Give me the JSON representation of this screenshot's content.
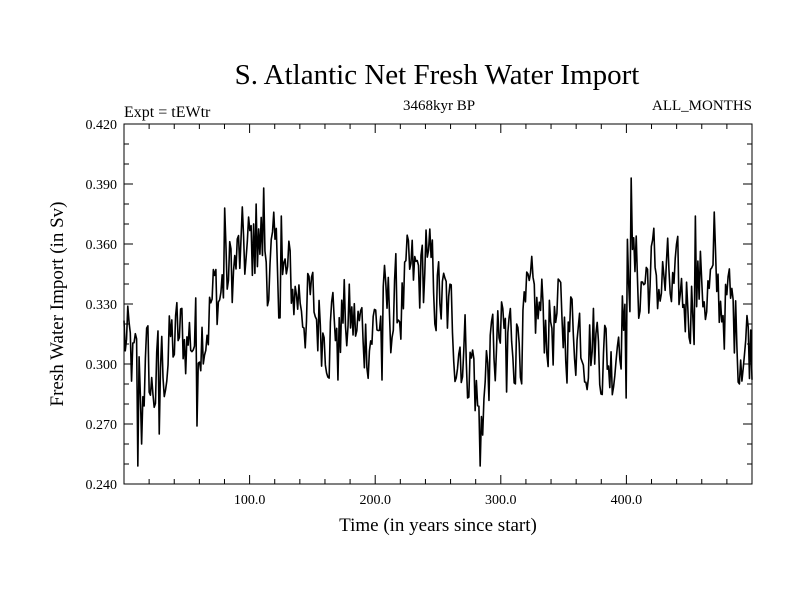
{
  "chart_data": {
    "type": "line",
    "title": "S. Atlantic Net Fresh Water Import",
    "subtitle_left": "Expt = tEWtr",
    "subtitle_center": "3468kyr BP",
    "subtitle_right": "ALL_MONTHS",
    "xlabel": "Time (in years since start)",
    "ylabel": "Fresh Water Import (in Sv)",
    "xlim": [
      0,
      500
    ],
    "ylim": [
      0.24,
      0.42
    ],
    "x_ticks": [
      100,
      200,
      300,
      400
    ],
    "x_tick_labels": [
      "100.0",
      "200.0",
      "300.0",
      "400.0"
    ],
    "y_ticks": [
      0.24,
      0.27,
      0.3,
      0.33,
      0.36,
      0.39,
      0.42
    ],
    "y_tick_labels": [
      "0.240",
      "0.270",
      "0.300",
      "0.330",
      "0.360",
      "0.390",
      "0.420"
    ],
    "grid": false,
    "series": [
      {
        "name": "Fresh Water Import",
        "anchors_x": [
          0,
          5,
          12,
          18,
          22,
          30,
          40,
          55,
          60,
          70,
          80,
          90,
          100,
          110,
          115,
          120,
          130,
          140,
          150,
          160,
          170,
          180,
          190,
          200,
          210,
          220,
          230,
          240,
          250,
          260,
          270,
          278,
          283,
          286,
          290,
          300,
          310,
          320,
          330,
          340,
          350,
          360,
          370,
          380,
          388,
          392,
          400,
          404,
          410,
          420,
          430,
          440,
          450,
          460,
          470,
          480,
          490,
          500
        ],
        "anchors_y": [
          0.315,
          0.3,
          0.29,
          0.3,
          0.285,
          0.3,
          0.31,
          0.315,
          0.32,
          0.33,
          0.34,
          0.35,
          0.355,
          0.36,
          0.35,
          0.345,
          0.34,
          0.335,
          0.325,
          0.32,
          0.325,
          0.32,
          0.315,
          0.32,
          0.325,
          0.33,
          0.34,
          0.345,
          0.335,
          0.32,
          0.31,
          0.3,
          0.27,
          0.285,
          0.3,
          0.31,
          0.315,
          0.32,
          0.325,
          0.32,
          0.318,
          0.32,
          0.315,
          0.31,
          0.3,
          0.315,
          0.34,
          0.35,
          0.34,
          0.345,
          0.34,
          0.33,
          0.335,
          0.34,
          0.335,
          0.33,
          0.315,
          0.31
        ],
        "spikes": [
          [
            11,
            0.249
          ],
          [
            14,
            0.26
          ],
          [
            28,
            0.265
          ],
          [
            58,
            0.269
          ],
          [
            80,
            0.378
          ],
          [
            105,
            0.38
          ],
          [
            111,
            0.388
          ],
          [
            125,
            0.374
          ],
          [
            170,
            0.292
          ],
          [
            205,
            0.292
          ],
          [
            240,
            0.367
          ],
          [
            284,
            0.249
          ],
          [
            305,
            0.286
          ],
          [
            400,
            0.283
          ],
          [
            404,
            0.393
          ],
          [
            455,
            0.374
          ],
          [
            470,
            0.376
          ],
          [
            490,
            0.29
          ]
        ],
        "points": 500,
        "noise_amplitude": 0.024
      }
    ]
  }
}
